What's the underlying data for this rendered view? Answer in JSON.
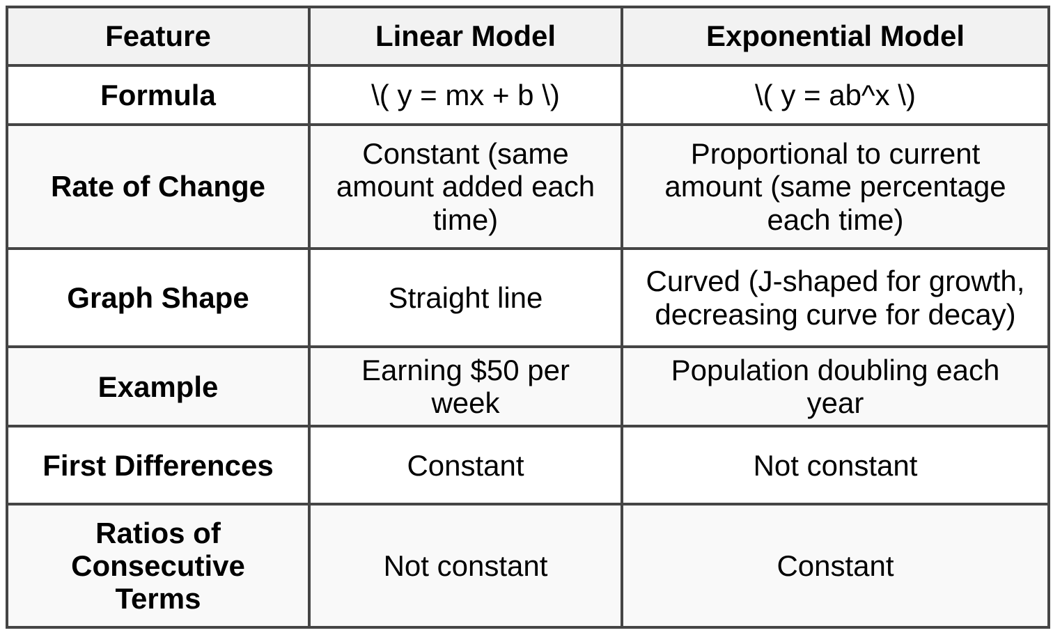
{
  "table": {
    "columns": [
      {
        "label": "Feature"
      },
      {
        "label": "Linear Model"
      },
      {
        "label": "Exponential Model"
      }
    ],
    "rows": [
      {
        "feature": "Formula",
        "linear": "\\( y = mx + b \\)",
        "exponential": "\\( y = ab^x \\)"
      },
      {
        "feature": "Rate of Change",
        "linear": "Constant (same amount added each time)",
        "exponential": "Proportional to current amount (same percentage each time)"
      },
      {
        "feature": "Graph Shape",
        "linear": "Straight line",
        "exponential": "Curved (J-shaped for growth, decreasing curve for decay)"
      },
      {
        "feature": "Example",
        "linear": "Earning $50 per week",
        "exponential": "Population doubling each year"
      },
      {
        "feature": "First Differences",
        "linear": "Constant",
        "exponential": "Not constant"
      },
      {
        "feature": "Ratios of Consecutive Terms",
        "linear": "Not constant",
        "exponential": "Constant"
      }
    ],
    "colors": {
      "header_bg": "#f2f2f2",
      "even_row_bg": "#f9f9f9",
      "border": "#454545",
      "text": "#000000",
      "page_bg": "#ffffff"
    }
  }
}
